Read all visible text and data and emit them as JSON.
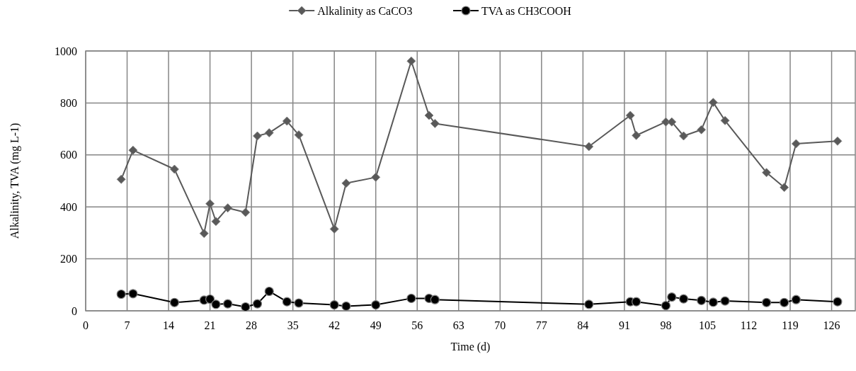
{
  "chart_data": {
    "type": "line",
    "xlabel": "Time (d)",
    "ylabel": "Alkalinity,  TVA (mg L-1)",
    "xlim": [
      0,
      130
    ],
    "xticks": [
      0,
      7,
      14,
      21,
      28,
      35,
      42,
      49,
      56,
      63,
      70,
      77,
      84,
      91,
      98,
      105,
      112,
      119,
      126
    ],
    "ylim": [
      0,
      1000
    ],
    "yticks": [
      0,
      200,
      400,
      600,
      800,
      1000
    ],
    "grid": true,
    "legend": "top",
    "series": [
      {
        "name": "Alkalinity as CaCO3",
        "color": "#595959",
        "marker": "diamond",
        "x": [
          6,
          8,
          15,
          20,
          21,
          22,
          24,
          27,
          29,
          31,
          34,
          36,
          42,
          44,
          49,
          55,
          58,
          59,
          85,
          92,
          93,
          98,
          99,
          101,
          104,
          106,
          108,
          115,
          118,
          120,
          127
        ],
        "values": [
          506,
          618,
          545,
          298,
          412,
          344,
          396,
          379,
          673,
          685,
          730,
          677,
          315,
          491,
          514,
          961,
          752,
          721,
          632,
          752,
          675,
          727,
          727,
          673,
          697,
          802,
          732,
          532,
          475,
          643,
          653
        ]
      },
      {
        "name": "TVA as CH3COOH",
        "color": "#000000",
        "marker": "circle",
        "x": [
          6,
          8,
          15,
          20,
          21,
          22,
          24,
          27,
          29,
          31,
          34,
          36,
          42,
          44,
          49,
          55,
          58,
          59,
          85,
          92,
          93,
          98,
          99,
          101,
          104,
          106,
          108,
          115,
          118,
          120,
          127
        ],
        "values": [
          64,
          66,
          32,
          41,
          45,
          25,
          27,
          15,
          27,
          75,
          35,
          30,
          23,
          18,
          23,
          48,
          48,
          43,
          25,
          35,
          35,
          20,
          53,
          46,
          40,
          33,
          38,
          32,
          32,
          43,
          35
        ]
      }
    ]
  }
}
